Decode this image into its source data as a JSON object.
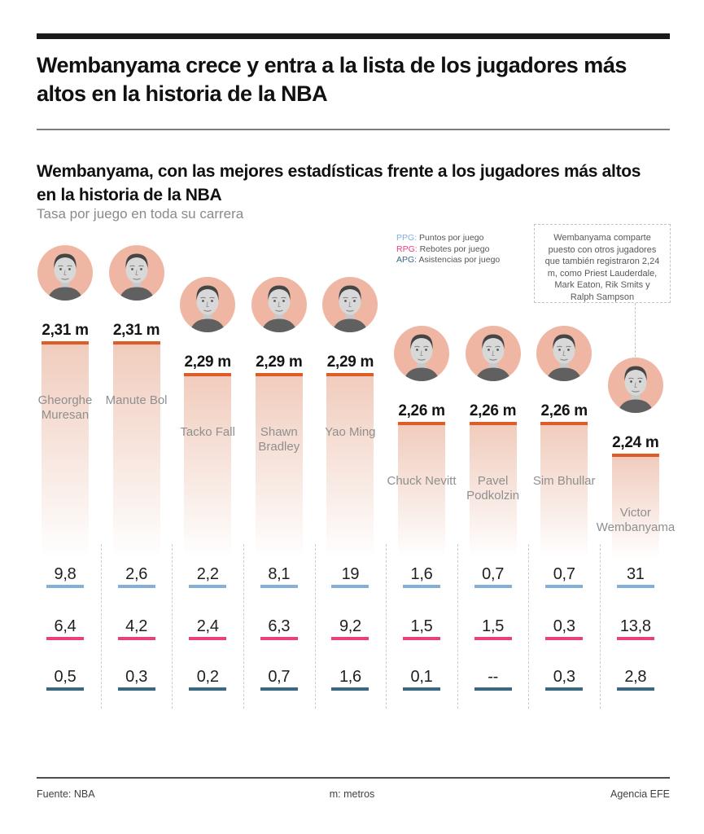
{
  "header": {
    "title": "Wembanyama crece y entra a la lista de los jugadores más altos en la historia de la NBA"
  },
  "chart": {
    "subtitle": "Wembanyama, con las mejores estadísticas frente a los jugadores más altos en la historia de la NBA",
    "subnote": "Tasa por juego en toda su carrera",
    "legend": [
      {
        "abbr": "PPG:",
        "label": "Puntos por juego",
        "color": "#86afd6"
      },
      {
        "abbr": "RPG:",
        "label": "Rebotes por juego",
        "color": "#e8407c"
      },
      {
        "abbr": "APG:",
        "label": "Asistencias por juego",
        "color": "#3b6881"
      }
    ],
    "annotation": {
      "text": "Wembanyama comparte puesto con otros jugadores que también registraron 2,24 m, como Priest Lauderdale, Mark Eaton, Rik Smits y Ralph Sampson"
    }
  },
  "chart_data": {
    "type": "bar",
    "title": "Wembanyama, con las mejores estadísticas frente a los jugadores más altos en la historia de la NBA",
    "subtitle": "Tasa por juego en toda su carrera",
    "unit_note": "m: metros",
    "value_axis": "altura (m)",
    "colors": {
      "bar_fill": "#f1ccbd",
      "bar_top": "#dd5c28",
      "circle_bg": "#efb7a3",
      "ppg": "#86afd6",
      "rpg": "#e8407c",
      "apg": "#3b6881"
    },
    "players": [
      {
        "name": "Gheorghe Muresan",
        "height_m": 2.31,
        "height_label": "2,31 m",
        "ppg": "9,8",
        "rpg": "6,4",
        "apg": "0,5"
      },
      {
        "name": "Manute Bol",
        "height_m": 2.31,
        "height_label": "2,31 m",
        "ppg": "2,6",
        "rpg": "4,2",
        "apg": "0,3"
      },
      {
        "name": "Tacko Fall",
        "height_m": 2.29,
        "height_label": "2,29 m",
        "ppg": "2,2",
        "rpg": "2,4",
        "apg": "0,2"
      },
      {
        "name": "Shawn Bradley",
        "height_m": 2.29,
        "height_label": "2,29 m",
        "ppg": "8,1",
        "rpg": "6,3",
        "apg": "0,7"
      },
      {
        "name": "Yao Ming",
        "height_m": 2.29,
        "height_label": "2,29 m",
        "ppg": "19",
        "rpg": "9,2",
        "apg": "1,6"
      },
      {
        "name": "Chuck Nevitt",
        "height_m": 2.26,
        "height_label": "2,26 m",
        "ppg": "1,6",
        "rpg": "1,5",
        "apg": "0,1"
      },
      {
        "name": "Pavel Podkolzin",
        "height_m": 2.26,
        "height_label": "2,26 m",
        "ppg": "0,7",
        "rpg": "1,5",
        "apg": "--"
      },
      {
        "name": "Sim Bhullar",
        "height_m": 2.26,
        "height_label": "2,26 m",
        "ppg": "0,7",
        "rpg": "0,3",
        "apg": "0,3"
      },
      {
        "name": "Victor Wembanyama",
        "height_m": 2.24,
        "height_label": "2,24 m",
        "ppg": "31",
        "rpg": "13,8",
        "apg": "2,8"
      }
    ]
  },
  "footer": {
    "source": "Fuente: NBA",
    "units": "m: metros",
    "credit": "Agencia EFE"
  }
}
